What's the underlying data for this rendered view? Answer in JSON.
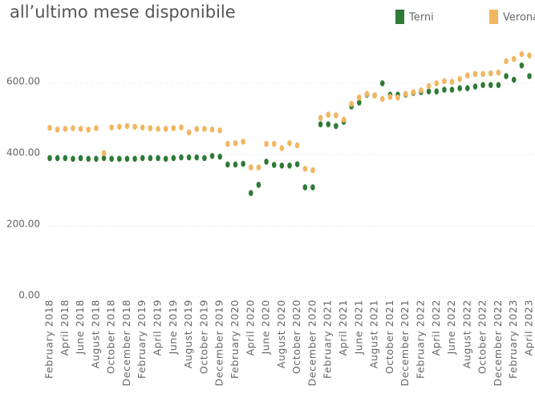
{
  "chart_data": {
    "type": "scatter",
    "title": "all’ultimo mese disponibile",
    "categories": [
      "February 2018",
      null,
      "April 2018",
      null,
      "June 2018",
      null,
      "August 2018",
      null,
      "October 2018",
      null,
      "December 2018",
      null,
      "February 2019",
      null,
      "April 2019",
      null,
      "June 2019",
      null,
      "August 2019",
      null,
      "October 2019",
      null,
      "December 2019",
      null,
      "February 2020",
      null,
      "April 2020",
      null,
      "June 2020",
      null,
      "August 2020",
      null,
      "October 2020",
      null,
      "December 2020",
      null,
      "February 2021",
      null,
      "April 2021",
      null,
      "June 2021",
      null,
      "August 2021",
      null,
      "October 2021",
      null,
      "December 2021",
      null,
      "February 2022",
      null,
      "April 2022",
      null,
      "June 2022",
      null,
      "August 2022",
      null,
      "October 2022",
      null,
      "December 2022",
      null,
      "February 2023",
      null,
      "April 2023"
    ],
    "series": [
      {
        "name": "Terni",
        "color": "#2f7a37",
        "values": [
          390,
          390,
          390,
          388,
          390,
          388,
          388,
          390,
          388,
          388,
          388,
          388,
          390,
          390,
          390,
          388,
          390,
          392,
          392,
          392,
          390,
          396,
          394,
          372,
          372,
          374,
          292,
          315,
          380,
          371,
          369,
          369,
          373,
          308,
          308,
          485,
          485,
          480,
          492,
          535,
          546,
          568,
          566,
          600,
          568,
          568,
          568,
          573,
          575,
          577,
          577,
          582,
          582,
          586,
          586,
          591,
          595,
          595,
          595,
          620,
          610,
          650,
          620
        ]
      },
      {
        "name": "Verona",
        "color": "#f2b661",
        "values": [
          475,
          470,
          472,
          474,
          472,
          470,
          474,
          404,
          476,
          478,
          480,
          478,
          476,
          474,
          472,
          472,
          474,
          476,
          462,
          472,
          472,
          470,
          468,
          430,
          432,
          436,
          364,
          364,
          430,
          430,
          418,
          432,
          426,
          360,
          356,
          503,
          512,
          510,
          498,
          542,
          560,
          570,
          566,
          556,
          562,
          560,
          570,
          575,
          580,
          592,
          600,
          606,
          604,
          612,
          622,
          626,
          626,
          628,
          630,
          662,
          668,
          682,
          678
        ]
      }
    ],
    "ylim": [
      0,
      700
    ],
    "yticks": [
      {
        "value": 0,
        "label": "0.00"
      },
      {
        "value": 200,
        "label": "200.00"
      },
      {
        "value": 400,
        "label": "400.00"
      },
      {
        "value": 600,
        "label": "600.00"
      }
    ],
    "grid": true,
    "legend": "top-right"
  }
}
